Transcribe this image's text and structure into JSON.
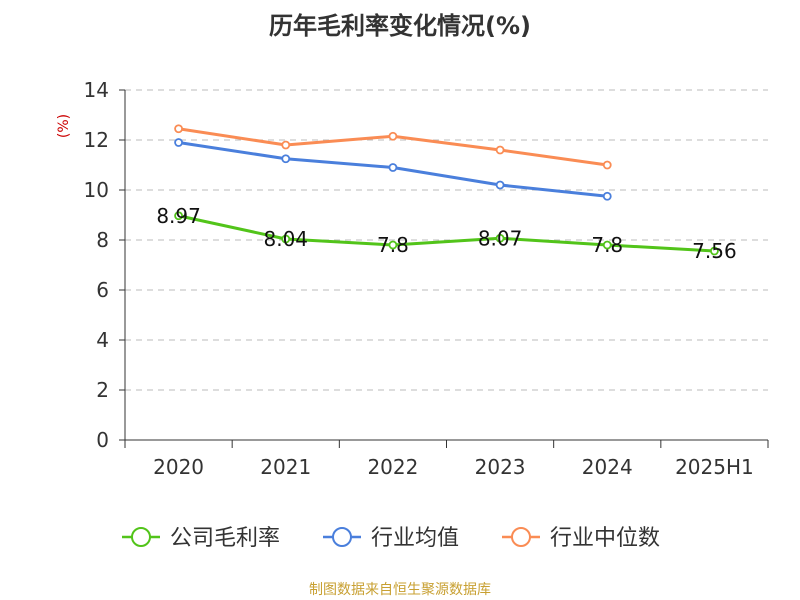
{
  "chart_data": {
    "type": "line",
    "title": "历年毛利率变化情况(%)",
    "ylabel": "(%)",
    "xlabel": "",
    "categories": [
      "2020",
      "2021",
      "2022",
      "2023",
      "2024",
      "2025H1"
    ],
    "ylim": [
      0,
      14
    ],
    "yticks": [
      0,
      2,
      4,
      6,
      8,
      10,
      12,
      14
    ],
    "grid": true,
    "legend_position": "bottom",
    "series": [
      {
        "name": "公司毛利率",
        "color": "#52c41a",
        "values": [
          8.97,
          8.04,
          7.8,
          8.07,
          7.8,
          7.56
        ],
        "labels": [
          "8.97",
          "8.04",
          "7.8",
          "8.07",
          "7.8",
          "7.56"
        ]
      },
      {
        "name": "行业均值",
        "color": "#4a7fdc",
        "values": [
          11.9,
          11.25,
          10.9,
          10.2,
          9.75,
          null
        ]
      },
      {
        "name": "行业中位数",
        "color": "#fa8c54",
        "values": [
          12.45,
          11.8,
          12.15,
          11.6,
          11.0,
          null
        ]
      }
    ],
    "source": "制图数据来自恒生聚源数据库"
  }
}
